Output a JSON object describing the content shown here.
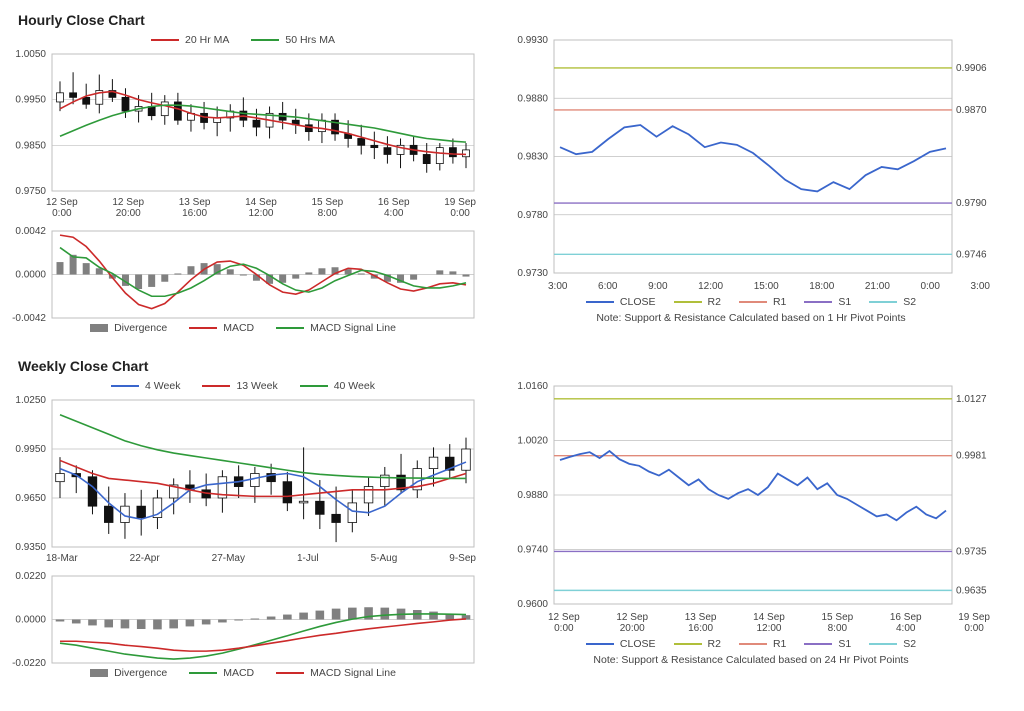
{
  "colors": {
    "red": "#cc2a2a",
    "green": "#2e9a3a",
    "blue": "#3a66cc",
    "black": "#111111",
    "grey": "#808080",
    "olive": "#b0bf3a",
    "salmon": "#e08a7a",
    "violet": "#8a6fc4",
    "cyan": "#7fd0d6",
    "grid": "#bfbfbf",
    "text": "#444444",
    "bg": "#ffffff"
  },
  "hourly": {
    "title": "Hourly Close Chart",
    "price": {
      "legend": [
        {
          "c": "red",
          "label": "20 Hr MA"
        },
        {
          "c": "green",
          "label": "50 Hrs MA"
        }
      ],
      "ylim": [
        0.975,
        1.005
      ],
      "yticks": [
        0.975,
        0.985,
        0.995,
        1.005
      ],
      "xlabels": [
        "12 Sep 0:00",
        "12 Sep 20:00",
        "13 Sep 16:00",
        "14 Sep 12:00",
        "15 Sep 8:00",
        "16 Sep 4:00",
        "19 Sep 0:00"
      ],
      "candles": [
        {
          "o": 0.9945,
          "h": 0.999,
          "l": 0.9925,
          "c": 0.9965
        },
        {
          "o": 0.9965,
          "h": 1.001,
          "l": 0.994,
          "c": 0.9955
        },
        {
          "o": 0.9955,
          "h": 0.9985,
          "l": 0.993,
          "c": 0.994
        },
        {
          "o": 0.994,
          "h": 1.0005,
          "l": 0.992,
          "c": 0.997
        },
        {
          "o": 0.997,
          "h": 0.9995,
          "l": 0.9945,
          "c": 0.9955
        },
        {
          "o": 0.9955,
          "h": 0.9975,
          "l": 0.991,
          "c": 0.9925
        },
        {
          "o": 0.9925,
          "h": 0.996,
          "l": 0.99,
          "c": 0.9935
        },
        {
          "o": 0.9935,
          "h": 0.9965,
          "l": 0.9905,
          "c": 0.9915
        },
        {
          "o": 0.9915,
          "h": 0.996,
          "l": 0.9895,
          "c": 0.9945
        },
        {
          "o": 0.9945,
          "h": 0.9965,
          "l": 0.9895,
          "c": 0.9905
        },
        {
          "o": 0.9905,
          "h": 0.994,
          "l": 0.988,
          "c": 0.992
        },
        {
          "o": 0.992,
          "h": 0.9945,
          "l": 0.9885,
          "c": 0.99
        },
        {
          "o": 0.99,
          "h": 0.9935,
          "l": 0.987,
          "c": 0.991
        },
        {
          "o": 0.991,
          "h": 0.994,
          "l": 0.988,
          "c": 0.9925
        },
        {
          "o": 0.9925,
          "h": 0.9955,
          "l": 0.989,
          "c": 0.9905
        },
        {
          "o": 0.9905,
          "h": 0.993,
          "l": 0.987,
          "c": 0.989
        },
        {
          "o": 0.989,
          "h": 0.9935,
          "l": 0.9865,
          "c": 0.992
        },
        {
          "o": 0.992,
          "h": 0.9945,
          "l": 0.9885,
          "c": 0.9905
        },
        {
          "o": 0.9905,
          "h": 0.993,
          "l": 0.9875,
          "c": 0.9895
        },
        {
          "o": 0.9895,
          "h": 0.992,
          "l": 0.986,
          "c": 0.988
        },
        {
          "o": 0.988,
          "h": 0.992,
          "l": 0.9855,
          "c": 0.9905
        },
        {
          "o": 0.9905,
          "h": 0.992,
          "l": 0.986,
          "c": 0.9875
        },
        {
          "o": 0.9875,
          "h": 0.9905,
          "l": 0.9845,
          "c": 0.9865
        },
        {
          "o": 0.9865,
          "h": 0.9895,
          "l": 0.983,
          "c": 0.985
        },
        {
          "o": 0.985,
          "h": 0.988,
          "l": 0.982,
          "c": 0.9845
        },
        {
          "o": 0.9845,
          "h": 0.987,
          "l": 0.981,
          "c": 0.983
        },
        {
          "o": 0.983,
          "h": 0.9865,
          "l": 0.98,
          "c": 0.985
        },
        {
          "o": 0.985,
          "h": 0.987,
          "l": 0.9815,
          "c": 0.983
        },
        {
          "o": 0.983,
          "h": 0.9855,
          "l": 0.979,
          "c": 0.981
        },
        {
          "o": 0.981,
          "h": 0.9855,
          "l": 0.9795,
          "c": 0.9845
        },
        {
          "o": 0.9845,
          "h": 0.9865,
          "l": 0.981,
          "c": 0.9825
        },
        {
          "o": 0.9825,
          "h": 0.9855,
          "l": 0.98,
          "c": 0.984
        }
      ],
      "ma20": [
        0.993,
        0.9945,
        0.9958,
        0.9965,
        0.9968,
        0.996,
        0.995,
        0.9943,
        0.9937,
        0.993,
        0.992,
        0.9912,
        0.991,
        0.9912,
        0.9914,
        0.991,
        0.9905,
        0.99,
        0.9895,
        0.989,
        0.9887,
        0.9882,
        0.9876,
        0.9868,
        0.986,
        0.9852,
        0.9845,
        0.984,
        0.9836,
        0.9833,
        0.9831,
        0.983
      ],
      "ma50": [
        0.987,
        0.9882,
        0.9894,
        0.9905,
        0.9915,
        0.9923,
        0.993,
        0.9935,
        0.9938,
        0.9938,
        0.9936,
        0.9932,
        0.9928,
        0.9924,
        0.992,
        0.9918,
        0.9916,
        0.9914,
        0.9912,
        0.9908,
        0.9904,
        0.99,
        0.9896,
        0.9892,
        0.9888,
        0.9882,
        0.9876,
        0.987,
        0.9865,
        0.9862,
        0.9859,
        0.9857
      ]
    },
    "macd": {
      "legend": [
        {
          "type": "box",
          "c": "grey",
          "label": "Divergence"
        },
        {
          "type": "line",
          "c": "red",
          "label": "MACD"
        },
        {
          "type": "line",
          "c": "green",
          "label": "MACD Signal Line"
        }
      ],
      "ylim": [
        -0.0042,
        0.0042
      ],
      "yticks": [
        -0.0042,
        0.0,
        0.0042
      ],
      "hist": [
        0.0012,
        0.0019,
        0.0011,
        0.0006,
        -0.0004,
        -0.0011,
        -0.0014,
        -0.0012,
        -0.0007,
        0.0001,
        0.0008,
        0.0011,
        0.001,
        0.0005,
        -0.0001,
        -0.0006,
        -0.0009,
        -0.0008,
        -0.0004,
        0.0002,
        0.0006,
        0.0007,
        0.0005,
        0.0001,
        -0.0004,
        -0.0007,
        -0.0008,
        -0.0005,
        0.0,
        0.0004,
        0.0003,
        -0.0002
      ],
      "macd": [
        0.0038,
        0.0036,
        0.0027,
        0.0013,
        -0.0003,
        -0.0018,
        -0.0029,
        -0.0033,
        -0.0028,
        -0.0017,
        -0.0005,
        0.0005,
        0.0012,
        0.0013,
        0.0009,
        0.0,
        -0.001,
        -0.0017,
        -0.0019,
        -0.0015,
        -0.0007,
        0.0001,
        0.0006,
        0.0005,
        -0.0001,
        -0.0008,
        -0.0014,
        -0.0016,
        -0.0013,
        -0.0009,
        -0.0008,
        -0.001
      ],
      "signal": [
        0.0026,
        0.0017,
        0.0016,
        0.0007,
        0.0001,
        -0.0007,
        -0.0015,
        -0.0021,
        -0.0021,
        -0.0018,
        -0.0013,
        -0.0006,
        0.0002,
        0.0008,
        0.001,
        0.0006,
        -0.0001,
        -0.0009,
        -0.0015,
        -0.0017,
        -0.0013,
        -0.0006,
        -0.0001,
        0.0004,
        0.0003,
        -0.0001,
        -0.0006,
        -0.0011,
        -0.0013,
        -0.0013,
        -0.0011,
        -0.0008
      ]
    },
    "sr": {
      "ylim": [
        0.973,
        0.993
      ],
      "yticks": [
        0.973,
        0.978,
        0.983,
        0.988,
        0.993
      ],
      "xlabels": [
        "3:00",
        "6:00",
        "9:00",
        "12:00",
        "15:00",
        "18:00",
        "21:00",
        "0:00",
        "3:00"
      ],
      "lines": {
        "R2": {
          "c": "olive",
          "v": 0.9906
        },
        "R1": {
          "c": "salmon",
          "v": 0.987
        },
        "S1": {
          "c": "violet",
          "v": 0.979
        },
        "S2": {
          "c": "cyan",
          "v": 0.9746
        }
      },
      "close": [
        0.9838,
        0.9832,
        0.9834,
        0.9845,
        0.9855,
        0.9857,
        0.9847,
        0.9856,
        0.9849,
        0.9838,
        0.9842,
        0.984,
        0.9833,
        0.9822,
        0.981,
        0.9802,
        0.98,
        0.9808,
        0.9802,
        0.9814,
        0.9821,
        0.9819,
        0.9826,
        0.9834,
        0.9837
      ],
      "legend": [
        "CLOSE",
        "R2",
        "R1",
        "S1",
        "S2"
      ],
      "note": "Note: Support & Resistance Calculated based on 1 Hr Pivot Points"
    }
  },
  "weekly": {
    "title": "Weekly Close Chart",
    "price": {
      "legend": [
        {
          "c": "blue",
          "label": "4 Week"
        },
        {
          "c": "red",
          "label": "13 Week"
        },
        {
          "c": "green",
          "label": "40 Week"
        }
      ],
      "ylim": [
        0.935,
        1.025
      ],
      "yticks": [
        0.935,
        0.965,
        0.995,
        1.025
      ],
      "xlabels": [
        "18-Mar",
        "22-Apr",
        "27-May",
        "1-Jul",
        "5-Aug",
        "9-Sep"
      ],
      "candles": [
        {
          "o": 0.975,
          "h": 0.99,
          "l": 0.965,
          "c": 0.98
        },
        {
          "o": 0.98,
          "h": 0.985,
          "l": 0.968,
          "c": 0.978
        },
        {
          "o": 0.978,
          "h": 0.982,
          "l": 0.955,
          "c": 0.96
        },
        {
          "o": 0.96,
          "h": 0.972,
          "l": 0.943,
          "c": 0.95
        },
        {
          "o": 0.95,
          "h": 0.968,
          "l": 0.94,
          "c": 0.96
        },
        {
          "o": 0.96,
          "h": 0.97,
          "l": 0.942,
          "c": 0.953
        },
        {
          "o": 0.953,
          "h": 0.97,
          "l": 0.946,
          "c": 0.965
        },
        {
          "o": 0.965,
          "h": 0.977,
          "l": 0.955,
          "c": 0.973
        },
        {
          "o": 0.973,
          "h": 0.982,
          "l": 0.962,
          "c": 0.97
        },
        {
          "o": 0.97,
          "h": 0.98,
          "l": 0.96,
          "c": 0.965
        },
        {
          "o": 0.965,
          "h": 0.982,
          "l": 0.956,
          "c": 0.978
        },
        {
          "o": 0.978,
          "h": 0.985,
          "l": 0.965,
          "c": 0.972
        },
        {
          "o": 0.972,
          "h": 0.984,
          "l": 0.962,
          "c": 0.98
        },
        {
          "o": 0.98,
          "h": 0.986,
          "l": 0.967,
          "c": 0.975
        },
        {
          "o": 0.975,
          "h": 0.981,
          "l": 0.957,
          "c": 0.962
        },
        {
          "o": 0.962,
          "h": 0.996,
          "l": 0.952,
          "c": 0.963
        },
        {
          "o": 0.963,
          "h": 0.976,
          "l": 0.946,
          "c": 0.955
        },
        {
          "o": 0.955,
          "h": 0.972,
          "l": 0.938,
          "c": 0.95
        },
        {
          "o": 0.95,
          "h": 0.97,
          "l": 0.944,
          "c": 0.962
        },
        {
          "o": 0.962,
          "h": 0.978,
          "l": 0.954,
          "c": 0.972
        },
        {
          "o": 0.972,
          "h": 0.984,
          "l": 0.96,
          "c": 0.979
        },
        {
          "o": 0.979,
          "h": 0.992,
          "l": 0.968,
          "c": 0.97
        },
        {
          "o": 0.97,
          "h": 0.988,
          "l": 0.965,
          "c": 0.983
        },
        {
          "o": 0.983,
          "h": 0.996,
          "l": 0.972,
          "c": 0.99
        },
        {
          "o": 0.99,
          "h": 0.998,
          "l": 0.977,
          "c": 0.982
        },
        {
          "o": 0.982,
          "h": 1.002,
          "l": 0.974,
          "c": 0.995
        }
      ],
      "w4": [
        0.983,
        0.979,
        0.972,
        0.962,
        0.954,
        0.952,
        0.955,
        0.962,
        0.97,
        0.973,
        0.974,
        0.975,
        0.977,
        0.979,
        0.98,
        0.978,
        0.972,
        0.964,
        0.957,
        0.956,
        0.96,
        0.968,
        0.975,
        0.979,
        0.983,
        0.987
      ],
      "w13": [
        0.988,
        0.984,
        0.98,
        0.977,
        0.976,
        0.975,
        0.974,
        0.972,
        0.97,
        0.968,
        0.967,
        0.9665,
        0.966,
        0.966,
        0.966,
        0.967,
        0.968,
        0.969,
        0.97,
        0.97,
        0.97,
        0.971,
        0.972,
        0.974,
        0.977,
        0.98
      ],
      "w40": [
        1.016,
        1.012,
        1.008,
        1.004,
        1.0,
        0.997,
        0.9945,
        0.9925,
        0.991,
        0.9895,
        0.988,
        0.9865,
        0.985,
        0.9835,
        0.982,
        0.9805,
        0.9795,
        0.9788,
        0.9782,
        0.9778,
        0.9775,
        0.9773,
        0.9772,
        0.9771,
        0.977,
        0.977
      ]
    },
    "macd": {
      "legend": [
        {
          "type": "box",
          "c": "grey",
          "label": "Divergence"
        },
        {
          "type": "line",
          "c": "green",
          "label": "MACD"
        },
        {
          "type": "line",
          "c": "red",
          "label": "MACD Signal Line"
        }
      ],
      "ylim": [
        -0.022,
        0.022
      ],
      "yticks": [
        -0.022,
        0.0,
        0.022
      ],
      "hist": [
        -0.001,
        -0.002,
        -0.003,
        -0.004,
        -0.0045,
        -0.0048,
        -0.005,
        -0.0045,
        -0.0035,
        -0.0025,
        -0.0015,
        -0.0005,
        0.0005,
        0.0015,
        0.0025,
        0.0035,
        0.0045,
        0.0055,
        0.006,
        0.0062,
        0.006,
        0.0055,
        0.0048,
        0.004,
        0.003,
        0.0022
      ],
      "macd": [
        -0.012,
        -0.013,
        -0.0145,
        -0.016,
        -0.0175,
        -0.0185,
        -0.0195,
        -0.02,
        -0.0195,
        -0.0185,
        -0.017,
        -0.015,
        -0.0128,
        -0.0105,
        -0.0082,
        -0.0058,
        -0.0035,
        -0.0015,
        0.0002,
        0.0015,
        0.0022,
        0.0026,
        0.0028,
        0.0028,
        0.0027,
        0.0025
      ],
      "signal": [
        -0.011,
        -0.011,
        -0.0115,
        -0.012,
        -0.013,
        -0.0137,
        -0.0145,
        -0.0155,
        -0.016,
        -0.016,
        -0.0155,
        -0.0145,
        -0.0133,
        -0.012,
        -0.0107,
        -0.0093,
        -0.008,
        -0.007,
        -0.0058,
        -0.0047,
        -0.0038,
        -0.0029,
        -0.002,
        -0.0012,
        -0.0003,
        0.0003
      ]
    },
    "sr": {
      "ylim": [
        0.96,
        1.016
      ],
      "yticks": [
        0.96,
        0.974,
        0.988,
        1.002,
        1.016
      ],
      "xlabels": [
        "12 Sep 0:00",
        "12 Sep 20:00",
        "13 Sep 16:00",
        "14 Sep 12:00",
        "15 Sep 8:00",
        "16 Sep 4:00",
        "19 Sep 0:00"
      ],
      "lines": {
        "R2": {
          "c": "olive",
          "v": 1.0127
        },
        "R1": {
          "c": "salmon",
          "v": 0.9981
        },
        "S1": {
          "c": "violet",
          "v": 0.9735
        },
        "S2": {
          "c": "cyan",
          "v": 0.9635
        }
      },
      "close": [
        0.997,
        0.9978,
        0.9985,
        0.999,
        0.9975,
        0.9993,
        0.9972,
        0.996,
        0.9955,
        0.994,
        0.993,
        0.9945,
        0.9925,
        0.9905,
        0.992,
        0.9895,
        0.988,
        0.987,
        0.9885,
        0.9895,
        0.988,
        0.99,
        0.9935,
        0.992,
        0.9905,
        0.9925,
        0.9895,
        0.991,
        0.988,
        0.987,
        0.9855,
        0.984,
        0.9825,
        0.983,
        0.9815,
        0.9835,
        0.985,
        0.983,
        0.982,
        0.984
      ],
      "legend": [
        "CLOSE",
        "R2",
        "R1",
        "S1",
        "S2"
      ],
      "note": "Note: Support & Resistance Calculated based on 24 Hr Pivot Points"
    }
  }
}
